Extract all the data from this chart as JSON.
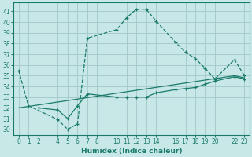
{
  "xlabel": "Humidex (Indice chaleur)",
  "bg_color": "#c8e8e8",
  "grid_color": "#a8cccc",
  "line_color": "#1a7a6a",
  "xlim": [
    -0.5,
    23.5
  ],
  "ylim": [
    29.5,
    41.8
  ],
  "xticks": [
    0,
    1,
    2,
    4,
    5,
    6,
    7,
    8,
    10,
    11,
    12,
    13,
    14,
    16,
    17,
    18,
    19,
    20,
    22,
    23
  ],
  "yticks": [
    30,
    31,
    32,
    33,
    34,
    35,
    36,
    37,
    38,
    39,
    40,
    41
  ],
  "series1_x": [
    0,
    1,
    4,
    5,
    6,
    7,
    10,
    11,
    12,
    13,
    14,
    16,
    17,
    18,
    19,
    20,
    22,
    23
  ],
  "series1_y": [
    35.5,
    32.2,
    30.9,
    30.0,
    30.5,
    38.5,
    39.3,
    40.4,
    41.2,
    41.2,
    40.1,
    38.1,
    37.2,
    36.6,
    35.7,
    34.7,
    36.5,
    35.0
  ],
  "series2_x": [
    0,
    22,
    23
  ],
  "series2_y": [
    32.0,
    35.0,
    34.8
  ],
  "series3_x": [
    2,
    4,
    5,
    6,
    7,
    10,
    11,
    12,
    13,
    14,
    16,
    17,
    18,
    19,
    20,
    22,
    23
  ],
  "series3_y": [
    32.0,
    31.8,
    31.0,
    32.2,
    33.3,
    33.0,
    33.0,
    33.0,
    33.0,
    33.4,
    33.7,
    33.8,
    33.9,
    34.2,
    34.5,
    34.9,
    34.7
  ]
}
